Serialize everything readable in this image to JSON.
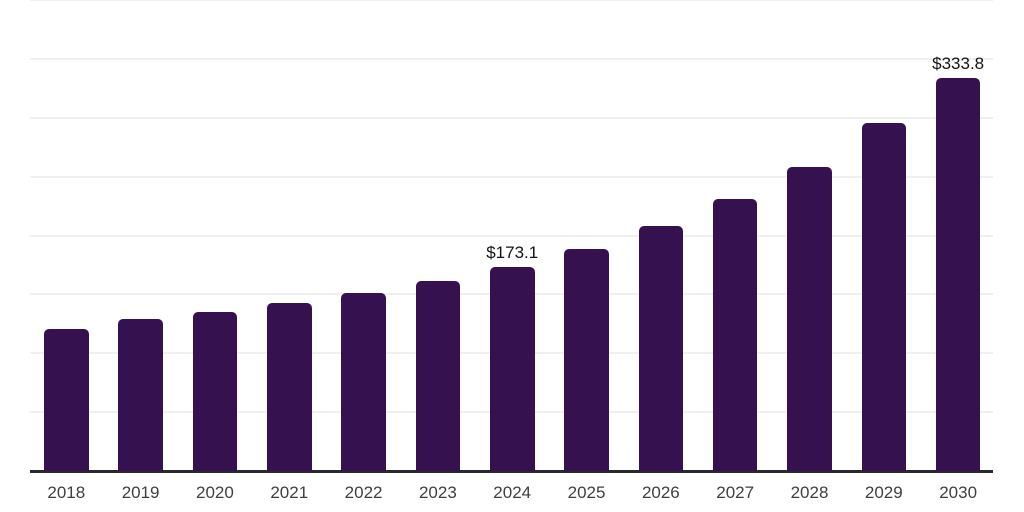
{
  "chart_data": {
    "type": "bar",
    "title": "",
    "xlabel": "",
    "ylabel": "",
    "categories": [
      "2018",
      "2019",
      "2020",
      "2021",
      "2022",
      "2023",
      "2024",
      "2025",
      "2026",
      "2027",
      "2028",
      "2029",
      "2030"
    ],
    "values": [
      120.9,
      129.3,
      134.7,
      142.6,
      151.2,
      161.0,
      173.1,
      188.6,
      207.8,
      231.2,
      258.4,
      295.3,
      333.8
    ],
    "point_labels": [
      "",
      "",
      "",
      "",
      "",
      "",
      "$173.1",
      "",
      "",
      "",
      "",
      "",
      "$333.8"
    ],
    "ylim": [
      0,
      400
    ],
    "gridline_interval": 50,
    "grid": "horizontal",
    "legend": false,
    "y_tick_labels_visible": false,
    "colors": {
      "bar": "#36114f",
      "axis_line": "#29282e",
      "gridline": "#f1eff2",
      "tick_label": "#3f3f3f",
      "data_label": "#141414",
      "background": "#ffffff"
    }
  }
}
